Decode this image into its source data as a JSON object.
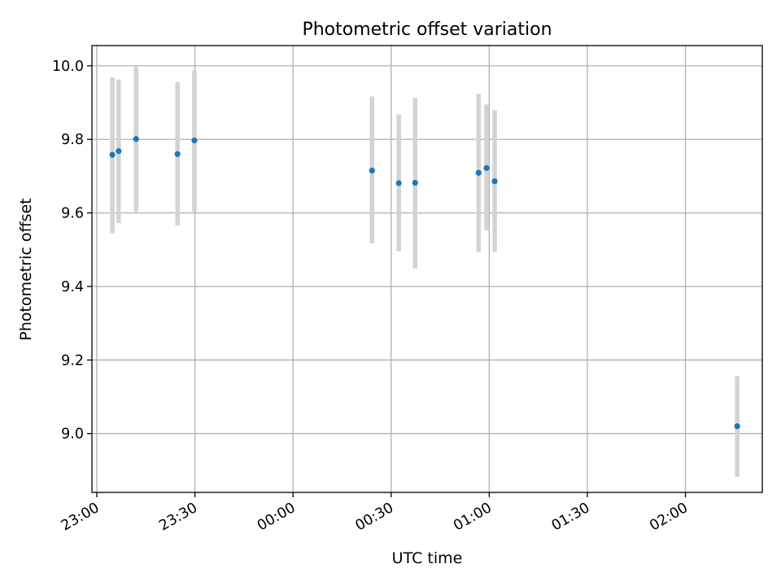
{
  "chart_data": {
    "type": "scatter",
    "title": "Photometric offset variation",
    "xlabel": "UTC time",
    "ylabel": "Photometric offset",
    "xlim": [
      "2000-01-01T22:58:30",
      "2000-01-02T02:23:30"
    ],
    "ylim": [
      8.84,
      10.055
    ],
    "grid": true,
    "x_ticks": [
      {
        "t": "2000-01-01T23:00:00",
        "label": "23:00"
      },
      {
        "t": "2000-01-01T23:30:00",
        "label": "23:30"
      },
      {
        "t": "2000-01-02T00:00:00",
        "label": "00:00"
      },
      {
        "t": "2000-01-02T00:30:00",
        "label": "00:30"
      },
      {
        "t": "2000-01-02T01:00:00",
        "label": "01:00"
      },
      {
        "t": "2000-01-02T01:30:00",
        "label": "01:30"
      },
      {
        "t": "2000-01-02T02:00:00",
        "label": "02:00"
      }
    ],
    "y_ticks": [
      {
        "v": 9.0,
        "label": "9.0"
      },
      {
        "v": 9.2,
        "label": "9.2"
      },
      {
        "v": 9.4,
        "label": "9.4"
      },
      {
        "v": 9.6,
        "label": "9.6"
      },
      {
        "v": 9.8,
        "label": "9.8"
      },
      {
        "v": 10.0,
        "label": "10.0"
      }
    ],
    "points": [
      {
        "t": "2000-01-01T23:04:45",
        "y": 9.758,
        "err_low": 9.545,
        "err_high": 9.968
      },
      {
        "t": "2000-01-01T23:06:40",
        "y": 9.768,
        "err_low": 9.572,
        "err_high": 9.963
      },
      {
        "t": "2000-01-01T23:12:00",
        "y": 9.801,
        "err_low": 9.603,
        "err_high": 9.997
      },
      {
        "t": "2000-01-01T23:24:40",
        "y": 9.76,
        "err_low": 9.566,
        "err_high": 9.955
      },
      {
        "t": "2000-01-01T23:29:50",
        "y": 9.797,
        "err_low": 9.603,
        "err_high": 9.988
      },
      {
        "t": "2000-01-02T00:24:10",
        "y": 9.715,
        "err_low": 9.517,
        "err_high": 9.917
      },
      {
        "t": "2000-01-02T00:32:20",
        "y": 9.681,
        "err_low": 9.496,
        "err_high": 9.868
      },
      {
        "t": "2000-01-02T00:37:20",
        "y": 9.682,
        "err_low": 9.449,
        "err_high": 9.912
      },
      {
        "t": "2000-01-02T00:56:45",
        "y": 9.709,
        "err_low": 9.494,
        "err_high": 9.924
      },
      {
        "t": "2000-01-02T00:59:10",
        "y": 9.722,
        "err_low": 9.552,
        "err_high": 9.895
      },
      {
        "t": "2000-01-02T01:01:40",
        "y": 9.686,
        "err_low": 9.494,
        "err_high": 9.879
      },
      {
        "t": "2000-01-02T02:15:50",
        "y": 9.02,
        "err_low": 8.882,
        "err_high": 9.156
      }
    ],
    "colors": {
      "marker": "#1f77b4",
      "errorbar": "#d3d3d3",
      "grid": "#b0b0b0",
      "axes": "#000000"
    }
  }
}
